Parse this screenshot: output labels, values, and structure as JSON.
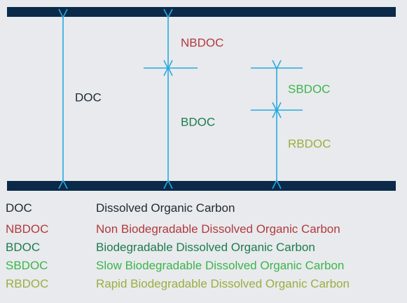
{
  "diagram_labels": [
    "DOC",
    "NBDOC",
    "BDOC",
    "SBDOC",
    "RBDOC"
  ],
  "legend": [
    {
      "abbr": "DOC",
      "full": "Dissolved Organic Carbon"
    },
    {
      "abbr": "NBDOC",
      "full": "Non Biodegradable Dissolved Organic Carbon"
    },
    {
      "abbr": "BDOC",
      "full": "Biodegradable Dissolved Organic Carbon"
    },
    {
      "abbr": "SBDOC",
      "full": "Slow Biodegradable Dissolved Organic Carbon"
    },
    {
      "abbr": "RBDOC",
      "full": "Rapid Biodegradable Dissolved Organic Carbon"
    }
  ]
}
